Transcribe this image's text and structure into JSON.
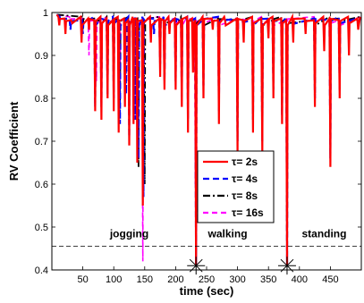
{
  "chart_data": {
    "type": "line",
    "title": "",
    "xlabel": "time (sec)",
    "ylabel": "RV Coefficient",
    "xlim": [
      0,
      500
    ],
    "ylim": [
      0.4,
      1.0
    ],
    "xticks": [
      50,
      100,
      150,
      200,
      250,
      300,
      350,
      400,
      450
    ],
    "xtick_labels": [
      "50",
      "100",
      "150",
      "200",
      "250",
      "300",
      "350",
      "400",
      "450"
    ],
    "yticks": [
      0.4,
      0.5,
      0.6,
      0.7,
      0.8,
      0.9,
      1.0
    ],
    "ytick_labels": [
      "0.4",
      "0.5",
      "0.6",
      "0.7",
      "0.8",
      "0.9",
      "1"
    ],
    "grid": false,
    "legend_position": "center-right",
    "threshold": 0.455,
    "boundaries": [
      {
        "x": 233,
        "y": 0.41
      },
      {
        "x": 380,
        "y": 0.41
      }
    ],
    "annotations": [
      {
        "text": "jogging",
        "x": 125,
        "y": 0.476
      },
      {
        "text": "walking",
        "x": 284,
        "y": 0.476
      },
      {
        "text": "standing",
        "x": 440,
        "y": 0.476
      }
    ],
    "series": [
      {
        "name": "τ= 2s",
        "color": "#ff0000",
        "dash": "solid",
        "dips": [
          [
            12,
            0.97
          ],
          [
            22,
            0.95
          ],
          [
            32,
            0.98
          ],
          [
            48,
            0.93
          ],
          [
            60,
            0.96
          ],
          [
            70,
            0.77
          ],
          [
            80,
            0.75
          ],
          [
            90,
            0.8
          ],
          [
            100,
            0.77
          ],
          [
            108,
            0.72
          ],
          [
            118,
            0.78
          ],
          [
            125,
            0.69
          ],
          [
            132,
            0.74
          ],
          [
            138,
            0.65
          ],
          [
            147,
            0.55
          ],
          [
            160,
            0.93
          ],
          [
            175,
            0.85
          ],
          [
            182,
            0.82
          ],
          [
            190,
            0.95
          ],
          [
            200,
            0.82
          ],
          [
            210,
            0.78
          ],
          [
            220,
            0.72
          ],
          [
            228,
            0.86
          ],
          [
            233,
            0.41
          ],
          [
            245,
            0.8
          ],
          [
            260,
            0.96
          ],
          [
            270,
            0.74
          ],
          [
            280,
            0.98
          ],
          [
            300,
            0.67
          ],
          [
            310,
            0.93
          ],
          [
            325,
            0.72
          ],
          [
            340,
            0.67
          ],
          [
            350,
            0.94
          ],
          [
            358,
            0.8
          ],
          [
            372,
            0.74
          ],
          [
            380,
            0.41
          ],
          [
            390,
            0.93
          ],
          [
            410,
            0.95
          ],
          [
            425,
            0.78
          ],
          [
            440,
            0.91
          ],
          [
            450,
            0.64
          ],
          [
            465,
            0.8
          ],
          [
            480,
            0.9
          ],
          [
            495,
            0.96
          ]
        ]
      },
      {
        "name": "τ= 4s",
        "color": "#0000ff",
        "dash": "7,4",
        "dips": [
          [
            14,
            0.98
          ],
          [
            30,
            0.96
          ],
          [
            50,
            0.95
          ],
          [
            70,
            0.78
          ],
          [
            80,
            0.78
          ],
          [
            90,
            0.81
          ],
          [
            100,
            0.8
          ],
          [
            110,
            0.74
          ],
          [
            120,
            0.81
          ],
          [
            125,
            0.71
          ],
          [
            135,
            0.75
          ],
          [
            140,
            0.66
          ],
          [
            148,
            0.57
          ],
          [
            165,
            0.95
          ],
          [
            175,
            0.88
          ],
          [
            182,
            0.84
          ],
          [
            200,
            0.84
          ],
          [
            210,
            0.8
          ],
          [
            220,
            0.75
          ],
          [
            233,
            0.41
          ],
          [
            245,
            0.83
          ],
          [
            270,
            0.77
          ],
          [
            300,
            0.7
          ],
          [
            325,
            0.75
          ],
          [
            340,
            0.7
          ],
          [
            358,
            0.82
          ],
          [
            372,
            0.76
          ],
          [
            380,
            0.41
          ],
          [
            425,
            0.8
          ],
          [
            450,
            0.66
          ],
          [
            465,
            0.82
          ],
          [
            495,
            0.97
          ]
        ]
      },
      {
        "name": "τ= 8s",
        "color": "#000000",
        "dash": "8,3,2,3",
        "dips": [
          [
            50,
            0.96
          ],
          [
            70,
            0.8
          ],
          [
            80,
            0.8
          ],
          [
            90,
            0.84
          ],
          [
            100,
            0.83
          ],
          [
            110,
            0.76
          ],
          [
            125,
            0.73
          ],
          [
            140,
            0.64
          ],
          [
            150,
            0.6
          ],
          [
            175,
            0.91
          ],
          [
            182,
            0.86
          ],
          [
            200,
            0.88
          ],
          [
            210,
            0.83
          ],
          [
            220,
            0.77
          ],
          [
            233,
            0.41
          ],
          [
            245,
            0.86
          ],
          [
            270,
            0.8
          ],
          [
            300,
            0.73
          ],
          [
            325,
            0.77
          ],
          [
            340,
            0.72
          ],
          [
            358,
            0.85
          ],
          [
            372,
            0.79
          ],
          [
            380,
            0.41
          ],
          [
            425,
            0.83
          ],
          [
            450,
            0.7
          ],
          [
            465,
            0.85
          ]
        ]
      },
      {
        "name": "τ= 16s",
        "color": "#ff00ff",
        "dash": "6,4",
        "dips": [
          [
            30,
            0.97
          ],
          [
            60,
            0.9
          ],
          [
            72,
            0.84
          ],
          [
            90,
            0.88
          ],
          [
            100,
            0.86
          ],
          [
            110,
            0.8
          ],
          [
            125,
            0.77
          ],
          [
            138,
            0.69
          ],
          [
            147,
            0.42
          ],
          [
            175,
            0.94
          ],
          [
            200,
            0.9
          ],
          [
            210,
            0.87
          ],
          [
            220,
            0.8
          ],
          [
            232,
            0.6
          ],
          [
            245,
            0.9
          ],
          [
            270,
            0.83
          ],
          [
            300,
            0.77
          ],
          [
            325,
            0.8
          ],
          [
            340,
            0.75
          ],
          [
            358,
            0.88
          ],
          [
            380,
            0.5
          ],
          [
            425,
            0.86
          ],
          [
            450,
            0.74
          ],
          [
            465,
            0.88
          ]
        ]
      }
    ]
  }
}
